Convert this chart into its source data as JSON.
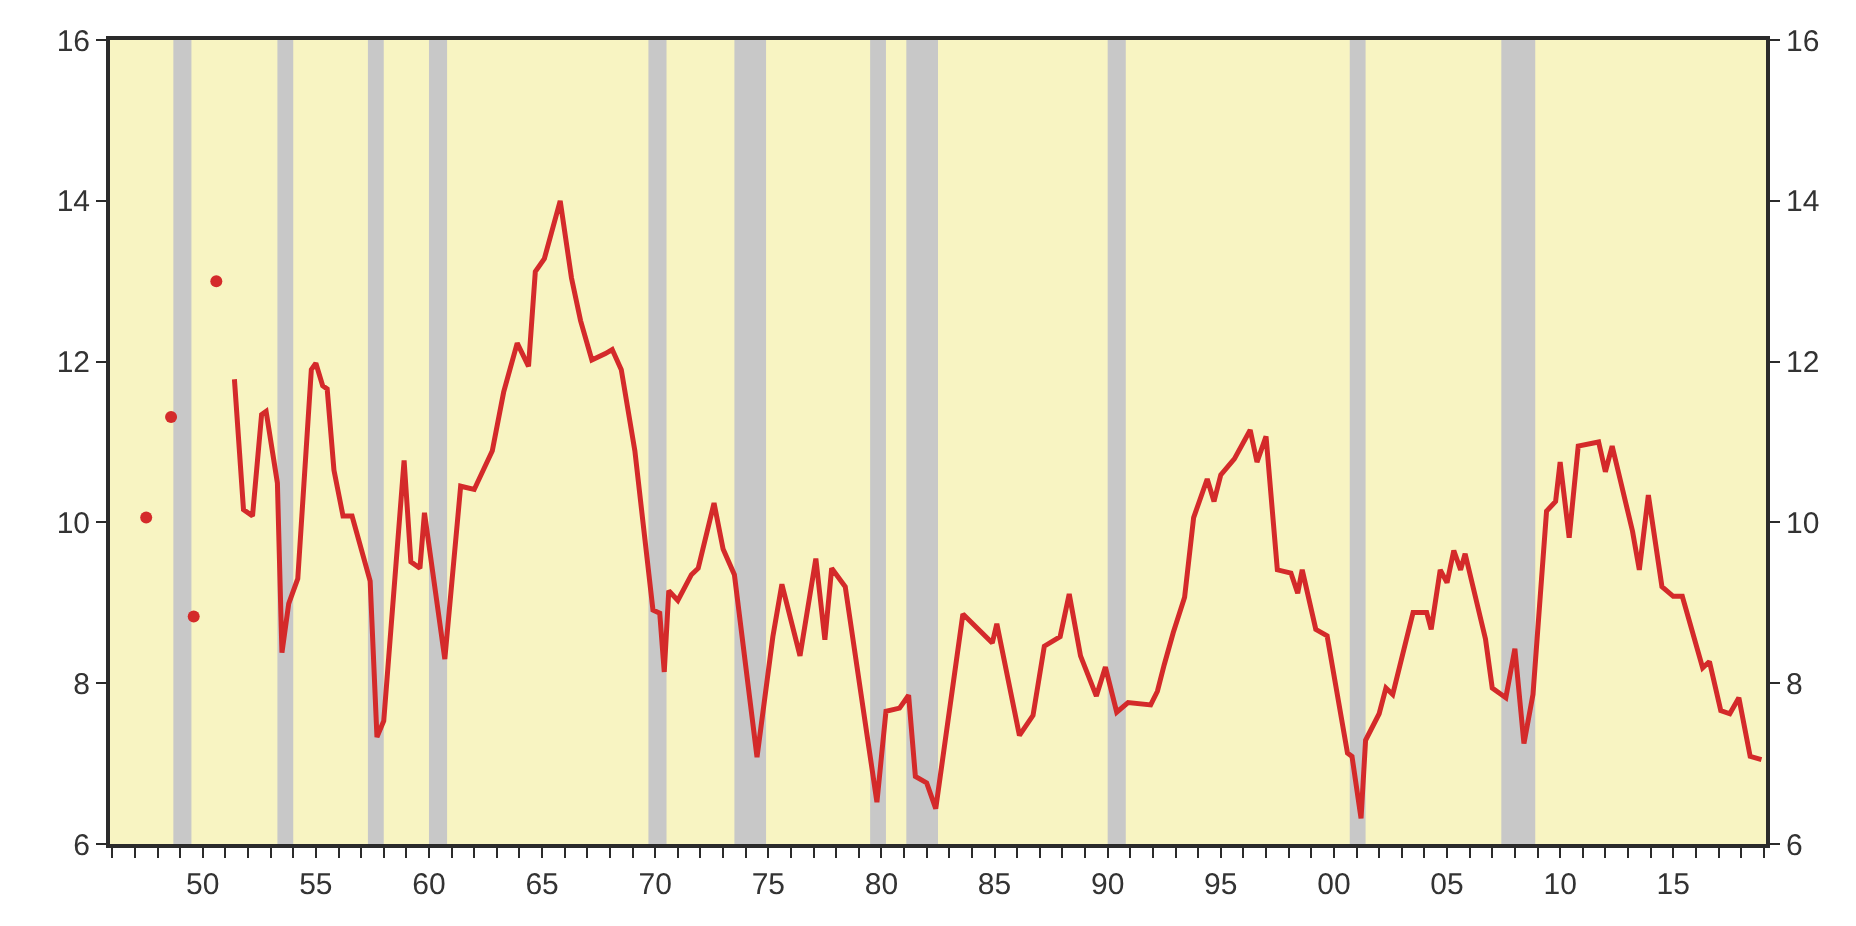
{
  "chart_data": {
    "type": "line",
    "xlim": [
      1945.9,
      2019.1
    ],
    "ylim": [
      6,
      16
    ],
    "yticks": [
      6,
      8,
      10,
      12,
      14,
      16
    ],
    "y2lim": [
      6,
      16
    ],
    "y2ticks": [
      6,
      8,
      10,
      12,
      14,
      16
    ],
    "xticks": [
      {
        "value": 1946,
        "label": null
      },
      {
        "value": 1947,
        "label": null
      },
      {
        "value": 1948,
        "label": null
      },
      {
        "value": 1949,
        "label": null
      },
      {
        "value": 1950,
        "label": "50"
      },
      {
        "value": 1951,
        "label": null
      },
      {
        "value": 1952,
        "label": null
      },
      {
        "value": 1953,
        "label": null
      },
      {
        "value": 1954,
        "label": null
      },
      {
        "value": 1955,
        "label": "55"
      },
      {
        "value": 1956,
        "label": null
      },
      {
        "value": 1957,
        "label": null
      },
      {
        "value": 1958,
        "label": null
      },
      {
        "value": 1959,
        "label": null
      },
      {
        "value": 1960,
        "label": "60"
      },
      {
        "value": 1961,
        "label": null
      },
      {
        "value": 1962,
        "label": null
      },
      {
        "value": 1963,
        "label": null
      },
      {
        "value": 1964,
        "label": null
      },
      {
        "value": 1965,
        "label": "65"
      },
      {
        "value": 1966,
        "label": null
      },
      {
        "value": 1967,
        "label": null
      },
      {
        "value": 1968,
        "label": null
      },
      {
        "value": 1969,
        "label": null
      },
      {
        "value": 1970,
        "label": "70"
      },
      {
        "value": 1971,
        "label": null
      },
      {
        "value": 1972,
        "label": null
      },
      {
        "value": 1973,
        "label": null
      },
      {
        "value": 1974,
        "label": null
      },
      {
        "value": 1975,
        "label": "75"
      },
      {
        "value": 1976,
        "label": null
      },
      {
        "value": 1977,
        "label": null
      },
      {
        "value": 1978,
        "label": null
      },
      {
        "value": 1979,
        "label": null
      },
      {
        "value": 1980,
        "label": "80"
      },
      {
        "value": 1981,
        "label": null
      },
      {
        "value": 1982,
        "label": null
      },
      {
        "value": 1983,
        "label": null
      },
      {
        "value": 1984,
        "label": null
      },
      {
        "value": 1985,
        "label": "85"
      },
      {
        "value": 1986,
        "label": null
      },
      {
        "value": 1987,
        "label": null
      },
      {
        "value": 1988,
        "label": null
      },
      {
        "value": 1989,
        "label": null
      },
      {
        "value": 1990,
        "label": "90"
      },
      {
        "value": 1991,
        "label": null
      },
      {
        "value": 1992,
        "label": null
      },
      {
        "value": 1993,
        "label": null
      },
      {
        "value": 1994,
        "label": null
      },
      {
        "value": 1995,
        "label": "95"
      },
      {
        "value": 1996,
        "label": null
      },
      {
        "value": 1997,
        "label": null
      },
      {
        "value": 1998,
        "label": null
      },
      {
        "value": 1999,
        "label": null
      },
      {
        "value": 2000,
        "label": "00"
      },
      {
        "value": 2001,
        "label": null
      },
      {
        "value": 2002,
        "label": null
      },
      {
        "value": 2003,
        "label": null
      },
      {
        "value": 2004,
        "label": null
      },
      {
        "value": 2005,
        "label": "05"
      },
      {
        "value": 2006,
        "label": null
      },
      {
        "value": 2007,
        "label": null
      },
      {
        "value": 2008,
        "label": null
      },
      {
        "value": 2009,
        "label": null
      },
      {
        "value": 2010,
        "label": "10"
      },
      {
        "value": 2011,
        "label": null
      },
      {
        "value": 2012,
        "label": null
      },
      {
        "value": 2013,
        "label": null
      },
      {
        "value": 2014,
        "label": null
      },
      {
        "value": 2015,
        "label": "15"
      },
      {
        "value": 2016,
        "label": null
      },
      {
        "value": 2017,
        "label": null
      },
      {
        "value": 2018,
        "label": null
      },
      {
        "value": 2019,
        "label": null
      }
    ],
    "grid": false,
    "series": [
      {
        "type": "scatter",
        "marker": "circle",
        "color": "#d42a2a",
        "x": [
          1947.5,
          1948.6,
          1949.6,
          1950.6
        ],
        "values": [
          10.06,
          11.31,
          8.83,
          13.0
        ]
      },
      {
        "type": "line",
        "marker": "none",
        "line_style": "solid",
        "color": "#d42a2a",
        "x": [
          1951.4,
          1951.8,
          1952.2,
          1952.6,
          1952.8,
          1953.3,
          1953.5,
          1953.8,
          1954.2,
          1954.8,
          1955.0,
          1955.3,
          1955.5,
          1955.8,
          1956.2,
          1956.6,
          1957.4,
          1957.7,
          1958.0,
          1958.9,
          1959.2,
          1959.6,
          1959.8,
          1960.7,
          1961.4,
          1962.0,
          1962.8,
          1963.3,
          1963.9,
          1964.4,
          1964.7,
          1965.1,
          1965.8,
          1966.3,
          1966.7,
          1967.2,
          1967.8,
          1968.1,
          1968.5,
          1969.1,
          1969.9,
          1970.2,
          1970.4,
          1970.6,
          1971.0,
          1971.6,
          1971.9,
          1972.6,
          1973.0,
          1973.5,
          1974.5,
          1975.2,
          1975.6,
          1976.4,
          1977.1,
          1977.5,
          1977.8,
          1978.4,
          1979.8,
          1980.2,
          1980.8,
          1981.2,
          1981.5,
          1982.0,
          1982.4,
          1983.6,
          1984.9,
          1985.1,
          1986.1,
          1986.7,
          1987.2,
          1987.9,
          1988.3,
          1988.8,
          1989.5,
          1989.9,
          1990.4,
          1990.9,
          1991.9,
          1992.2,
          1992.5,
          1992.9,
          1993.4,
          1993.8,
          1994.4,
          1994.7,
          1995.0,
          1995.6,
          1996.3,
          1996.6,
          1997.0,
          1997.5,
          1998.1,
          1998.4,
          1998.6,
          1999.2,
          1999.7,
          2000.6,
          2000.8,
          2001.2,
          2001.4,
          2002.0,
          2002.3,
          2002.6,
          2003.5,
          2004.1,
          2004.3,
          2004.7,
          2005.0,
          2005.3,
          2005.6,
          2005.8,
          2006.7,
          2007.0,
          2007.6,
          2008.0,
          2008.4,
          2008.8,
          2009.4,
          2009.8,
          2010.0,
          2010.4,
          2010.8,
          2011.7,
          2012.0,
          2012.3,
          2013.2,
          2013.5,
          2013.9,
          2014.5,
          2015.0,
          2015.4,
          2016.3,
          2016.6,
          2017.1,
          2017.5,
          2017.9,
          2018.4,
          2018.9
        ],
        "values": [
          11.78,
          10.16,
          10.08,
          11.34,
          11.38,
          10.49,
          8.38,
          8.99,
          9.3,
          11.9,
          11.98,
          11.7,
          11.66,
          10.65,
          10.08,
          10.08,
          9.27,
          7.33,
          7.53,
          10.77,
          9.51,
          9.43,
          10.12,
          8.3,
          10.45,
          10.41,
          10.89,
          11.62,
          12.23,
          11.94,
          13.12,
          13.28,
          14.0,
          13.04,
          12.51,
          12.02,
          12.1,
          12.15,
          11.9,
          10.89,
          8.91,
          8.87,
          8.14,
          9.15,
          9.03,
          9.35,
          9.43,
          10.24,
          9.67,
          9.35,
          7.08,
          8.58,
          9.23,
          8.34,
          9.55,
          8.54,
          9.43,
          9.2,
          6.52,
          7.65,
          7.69,
          7.85,
          6.84,
          6.76,
          6.44,
          8.86,
          8.5,
          8.74,
          7.35,
          7.6,
          8.46,
          8.58,
          9.11,
          8.34,
          7.84,
          8.2,
          7.64,
          7.76,
          7.73,
          7.9,
          8.23,
          8.63,
          9.07,
          10.06,
          10.54,
          10.26,
          10.59,
          10.79,
          11.15,
          10.75,
          11.07,
          9.41,
          9.37,
          9.12,
          9.41,
          8.67,
          8.59,
          7.13,
          7.09,
          6.32,
          7.29,
          7.62,
          7.94,
          7.86,
          8.88,
          8.88,
          8.67,
          9.41,
          9.25,
          9.65,
          9.41,
          9.61,
          8.55,
          7.94,
          7.82,
          8.43,
          7.25,
          7.86,
          10.14,
          10.26,
          10.75,
          9.81,
          10.95,
          11.0,
          10.63,
          10.95,
          9.89,
          9.41,
          10.34,
          9.2,
          9.08,
          9.08,
          8.19,
          8.27,
          7.66,
          7.62,
          7.82,
          7.09,
          7.05
        ]
      }
    ],
    "bands": [
      {
        "axis": "x",
        "from": 1948.7,
        "to": 1949.5,
        "color": "#c8c8c8"
      },
      {
        "axis": "x",
        "from": 1953.3,
        "to": 1954.0,
        "color": "#c8c8c8"
      },
      {
        "axis": "x",
        "from": 1957.3,
        "to": 1958.0,
        "color": "#c8c8c8"
      },
      {
        "axis": "x",
        "from": 1960.0,
        "to": 1960.8,
        "color": "#c8c8c8"
      },
      {
        "axis": "x",
        "from": 1969.7,
        "to": 1970.5,
        "color": "#c8c8c8"
      },
      {
        "axis": "x",
        "from": 1973.5,
        "to": 1974.9,
        "color": "#c8c8c8"
      },
      {
        "axis": "x",
        "from": 1979.5,
        "to": 1980.2,
        "color": "#c8c8c8"
      },
      {
        "axis": "x",
        "from": 1981.1,
        "to": 1982.5,
        "color": "#c8c8c8"
      },
      {
        "axis": "x",
        "from": 1990.0,
        "to": 1990.8,
        "color": "#c8c8c8"
      },
      {
        "axis": "x",
        "from": 2000.7,
        "to": 2001.4,
        "color": "#c8c8c8"
      },
      {
        "axis": "x",
        "from": 2007.4,
        "to": 2008.9,
        "color": "#c8c8c8"
      }
    ]
  }
}
